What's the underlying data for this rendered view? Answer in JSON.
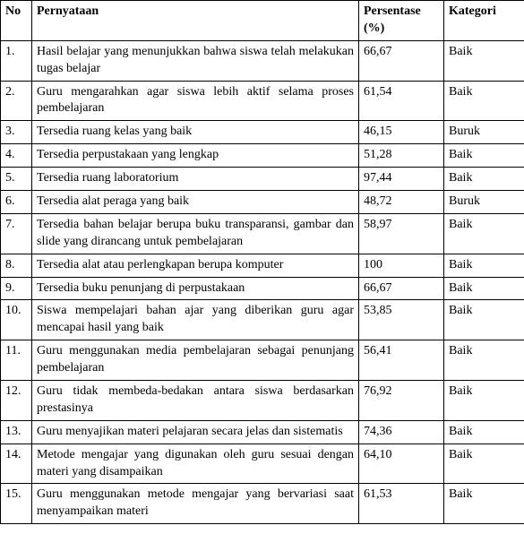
{
  "table": {
    "headers": {
      "no": "No",
      "statement": "Pernyataan",
      "percentage": "Persentase (%)",
      "category": "Kategori"
    },
    "rows": [
      {
        "no": "1.",
        "statement": "Hasil belajar yang menunjukkan bahwa siswa telah melakukan tugas belajar",
        "percentage": "66,67",
        "category": "Baik"
      },
      {
        "no": "2.",
        "statement": "Guru mengarahkan agar siswa lebih aktif selama proses pembelajaran",
        "percentage": "61,54",
        "category": "Baik"
      },
      {
        "no": "3.",
        "statement": "Tersedia ruang kelas yang baik",
        "percentage": "46,15",
        "category": "Buruk"
      },
      {
        "no": "4.",
        "statement": "Tersedia perpustakaan yang lengkap",
        "percentage": "51,28",
        "category": "Baik"
      },
      {
        "no": "5.",
        "statement": "Tersedia ruang laboratorium",
        "percentage": "97,44",
        "category": "Baik"
      },
      {
        "no": "6.",
        "statement": "Tersedia alat peraga yang baik",
        "percentage": "48,72",
        "category": "Buruk"
      },
      {
        "no": "7.",
        "statement": "Tersedia bahan belajar berupa buku transparansi, gambar dan slide yang dirancang untuk pembelajaran",
        "percentage": "58,97",
        "category": "Baik"
      },
      {
        "no": "8.",
        "statement": "Tersedia alat atau perlengkapan berupa komputer",
        "percentage": "100",
        "category": "Baik"
      },
      {
        "no": "9.",
        "statement": "Tersedia buku penunjang di perpustakaan",
        "percentage": "66,67",
        "category": "Baik"
      },
      {
        "no": "10.",
        "statement": "Siswa mempelajari bahan ajar yang diberikan guru agar mencapai hasil yang baik",
        "percentage": "53,85",
        "category": "Baik"
      },
      {
        "no": "11.",
        "statement": "Guru menggunakan media pembelajaran sebagai penunjang pembelajaran",
        "percentage": "56,41",
        "category": "Baik"
      },
      {
        "no": "12.",
        "statement": "Guru tidak membeda-bedakan antara siswa berdasarkan prestasinya",
        "percentage": "76,92",
        "category": "Baik"
      },
      {
        "no": "13.",
        "statement": "Guru menyajikan materi pelajaran secara jelas dan sistematis",
        "percentage": "74,36",
        "category": "Baik"
      },
      {
        "no": "14.",
        "statement": "Metode mengajar yang digunakan oleh guru sesuai dengan materi yang disampaikan",
        "percentage": "64,10",
        "category": "Baik"
      },
      {
        "no": "15.",
        "statement": "Guru menggunakan metode mengajar yang bervariasi saat menyampaikan materi",
        "percentage": "61,53",
        "category": "Baik"
      }
    ]
  }
}
